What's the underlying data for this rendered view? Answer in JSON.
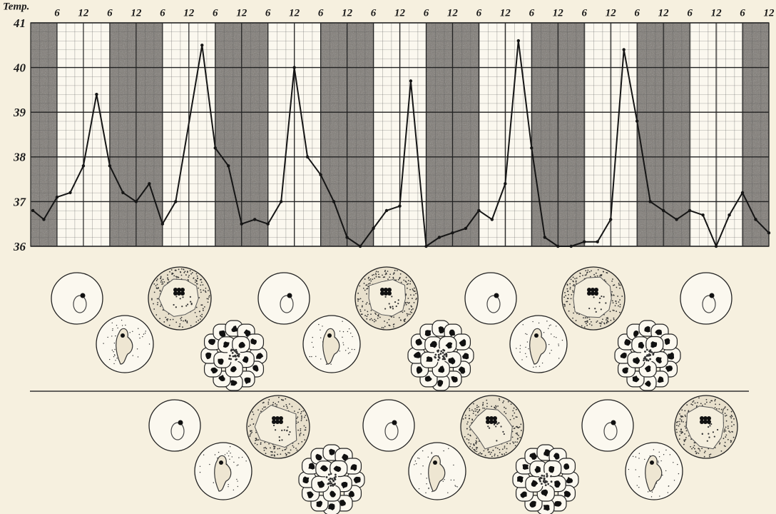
{
  "chart_data": {
    "type": "line",
    "y_label": "Temp.",
    "x": [
      0.5,
      3,
      6,
      9,
      12,
      15,
      18,
      21,
      24,
      27,
      30,
      33,
      39,
      42,
      45,
      48,
      51,
      54,
      57,
      60,
      63,
      66,
      69,
      72,
      75,
      78,
      81,
      84,
      86.5,
      90,
      93,
      96,
      99,
      102,
      105,
      108,
      111,
      114,
      117,
      120,
      123,
      126,
      129,
      132,
      135,
      138,
      141,
      144,
      147,
      150,
      153,
      156,
      159,
      162,
      165,
      168
    ],
    "series": [
      {
        "color": "#151515",
        "values": [
          36.8,
          36.6,
          37.1,
          37.2,
          37.8,
          39.4,
          37.8,
          37.2,
          37.0,
          37.4,
          36.5,
          37.0,
          40.5,
          38.2,
          37.8,
          36.5,
          36.6,
          36.5,
          37.0,
          40.0,
          38.0,
          37.6,
          37.0,
          36.2,
          36.0,
          36.4,
          36.8,
          36.9,
          39.7,
          36.0,
          36.2,
          36.3,
          36.4,
          36.8,
          36.6,
          37.4,
          40.6,
          38.2,
          36.2,
          36.0,
          36.0,
          36.1,
          36.1,
          36.6,
          40.4,
          38.8,
          37.0,
          36.8,
          36.6,
          36.8,
          36.7,
          36.0,
          36.7,
          37.2,
          36.6,
          36.3
        ]
      }
    ],
    "xlim": [
      0,
      168
    ],
    "xticks": [
      6,
      12,
      {
        "value": 18,
        "label": "6"
      },
      {
        "value": 24,
        "label": "12"
      },
      {
        "value": 30,
        "label": "6"
      },
      {
        "value": 36,
        "label": "12"
      },
      {
        "value": 42,
        "label": "6"
      },
      {
        "value": 48,
        "label": "12"
      },
      {
        "value": 54,
        "label": "6"
      },
      {
        "value": 60,
        "label": "12"
      },
      {
        "value": 66,
        "label": "6"
      },
      {
        "value": 72,
        "label": "12"
      },
      {
        "value": 78,
        "label": "6"
      },
      {
        "value": 84,
        "label": "12"
      },
      {
        "value": 90,
        "label": "6"
      },
      {
        "value": 96,
        "label": "12"
      },
      {
        "value": 102,
        "label": "6"
      },
      {
        "value": 108,
        "label": "12"
      },
      {
        "value": 114,
        "label": "6"
      },
      {
        "value": 120,
        "label": "12"
      },
      {
        "value": 126,
        "label": "6"
      },
      {
        "value": 132,
        "label": "12"
      },
      {
        "value": 138,
        "label": "6"
      },
      {
        "value": 144,
        "label": "12"
      },
      {
        "value": 150,
        "label": "6"
      },
      {
        "value": 156,
        "label": "12"
      },
      {
        "value": 162,
        "label": "6"
      },
      {
        "value": 168,
        "label": "12"
      }
    ],
    "ylim": [
      36,
      41
    ],
    "yticks": [
      36,
      37,
      38,
      39,
      40,
      41
    ],
    "shaded_ranges": [
      [
        0,
        6
      ],
      [
        18,
        30
      ],
      [
        42,
        54
      ],
      [
        66,
        78
      ],
      [
        90,
        102
      ],
      [
        114,
        126
      ],
      [
        138,
        150
      ],
      [
        162,
        168
      ]
    ],
    "shade_color": "#7d7872",
    "grid": true
  }
}
